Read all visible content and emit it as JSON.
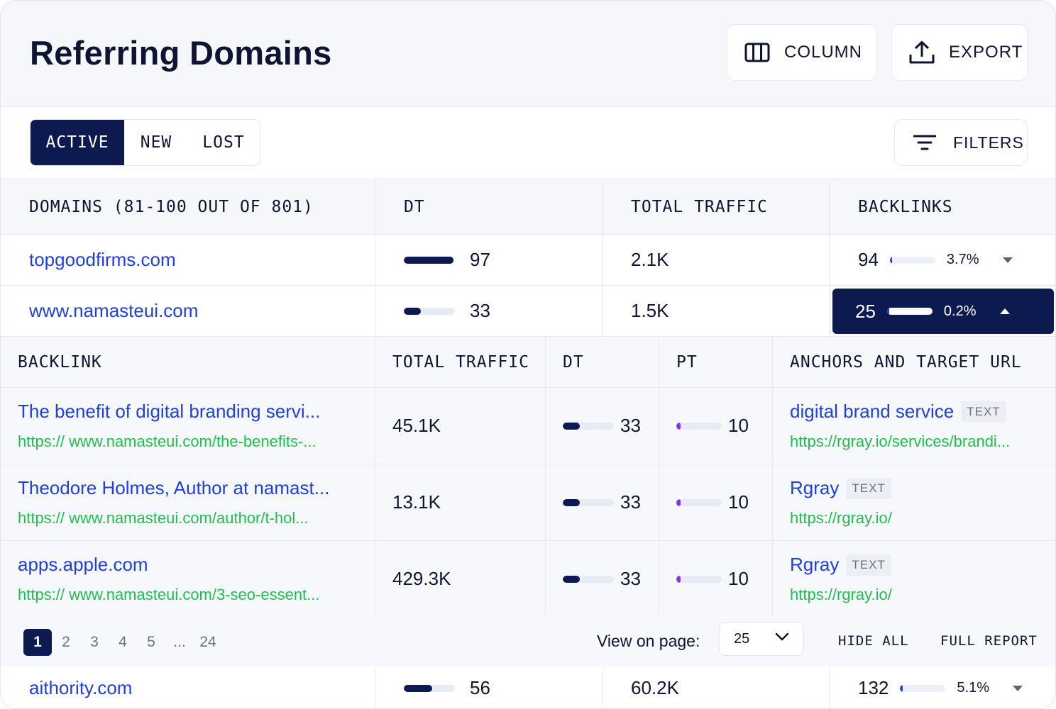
{
  "header": {
    "title": "Referring Domains",
    "column_label": "COLUMN",
    "export_label": "EXPORT"
  },
  "tabs": [
    {
      "label": "ACTIVE",
      "active": true
    },
    {
      "label": "NEW",
      "active": false
    },
    {
      "label": "LOST",
      "active": false
    }
  ],
  "filters_label": "FILTERS",
  "table": {
    "columns": [
      "DOMAINS (81-100 OUT OF 801)",
      "DT",
      "TOTAL TRAFFIC",
      "BACKLINKS"
    ],
    "rows": [
      {
        "domain": "topgoodfirms.com",
        "dt": "97",
        "dt_fraction": 0.97,
        "traffic": "2.1K",
        "backlinks": "94",
        "backlinks_pct": "3.7%",
        "backlinks_fraction": 0.037,
        "expanded": false
      },
      {
        "domain": "www.namasteui.com",
        "dt": "33",
        "dt_fraction": 0.33,
        "traffic": "1.5K",
        "backlinks": "25",
        "backlinks_pct": "0.2%",
        "backlinks_fraction": 0.002,
        "expanded": true
      },
      {
        "domain": "aithority.com",
        "dt": "56",
        "dt_fraction": 0.56,
        "traffic": "60.2K",
        "backlinks": "132",
        "backlinks_pct": "5.1%",
        "backlinks_fraction": 0.051,
        "expanded": false
      }
    ]
  },
  "backlinks": {
    "columns": [
      "BACKLINK",
      "TOTAL TRAFFIC",
      "DT",
      "PT",
      "ANCHORS AND TARGET URL"
    ],
    "rows": [
      {
        "title": "The benefit of digital branding servi...",
        "url": "https:// www.namasteui.com/the-benefits-...",
        "traffic": "45.1K",
        "dt": "33",
        "dt_fraction": 0.33,
        "pt": "10",
        "pt_fraction": 0.1,
        "anchor": "digital brand service",
        "anchor_type": "TEXT",
        "target": "https://rgray.io/services/brandi..."
      },
      {
        "title": "Theodore Holmes, Author at namast...",
        "url": "https:// www.namasteui.com/author/t-hol...",
        "traffic": "13.1K",
        "dt": "33",
        "dt_fraction": 0.33,
        "pt": "10",
        "pt_fraction": 0.1,
        "anchor": "Rgray",
        "anchor_type": "TEXT",
        "target": "https://rgray.io/"
      },
      {
        "title": "apps.apple.com",
        "url": "https:// www.namasteui.com/3-seo-essent...",
        "traffic": "429.3K",
        "dt": "33",
        "dt_fraction": 0.33,
        "pt": "10",
        "pt_fraction": 0.1,
        "anchor": "Rgray",
        "anchor_type": "TEXT",
        "target": "https://rgray.io/"
      }
    ]
  },
  "pagination": {
    "pages": [
      "1",
      "2",
      "3",
      "4",
      "5",
      "...",
      "24"
    ],
    "current": "1",
    "view_label": "View on page:",
    "per_page": "25",
    "hide_all": "HIDE ALL",
    "full_report": "FULL REPORT"
  },
  "colors": {
    "navy": "#0c1a4f",
    "link_blue": "#1f3fe0",
    "url_green": "#1fbf4e",
    "pt_purple": "#8b2ef0"
  }
}
